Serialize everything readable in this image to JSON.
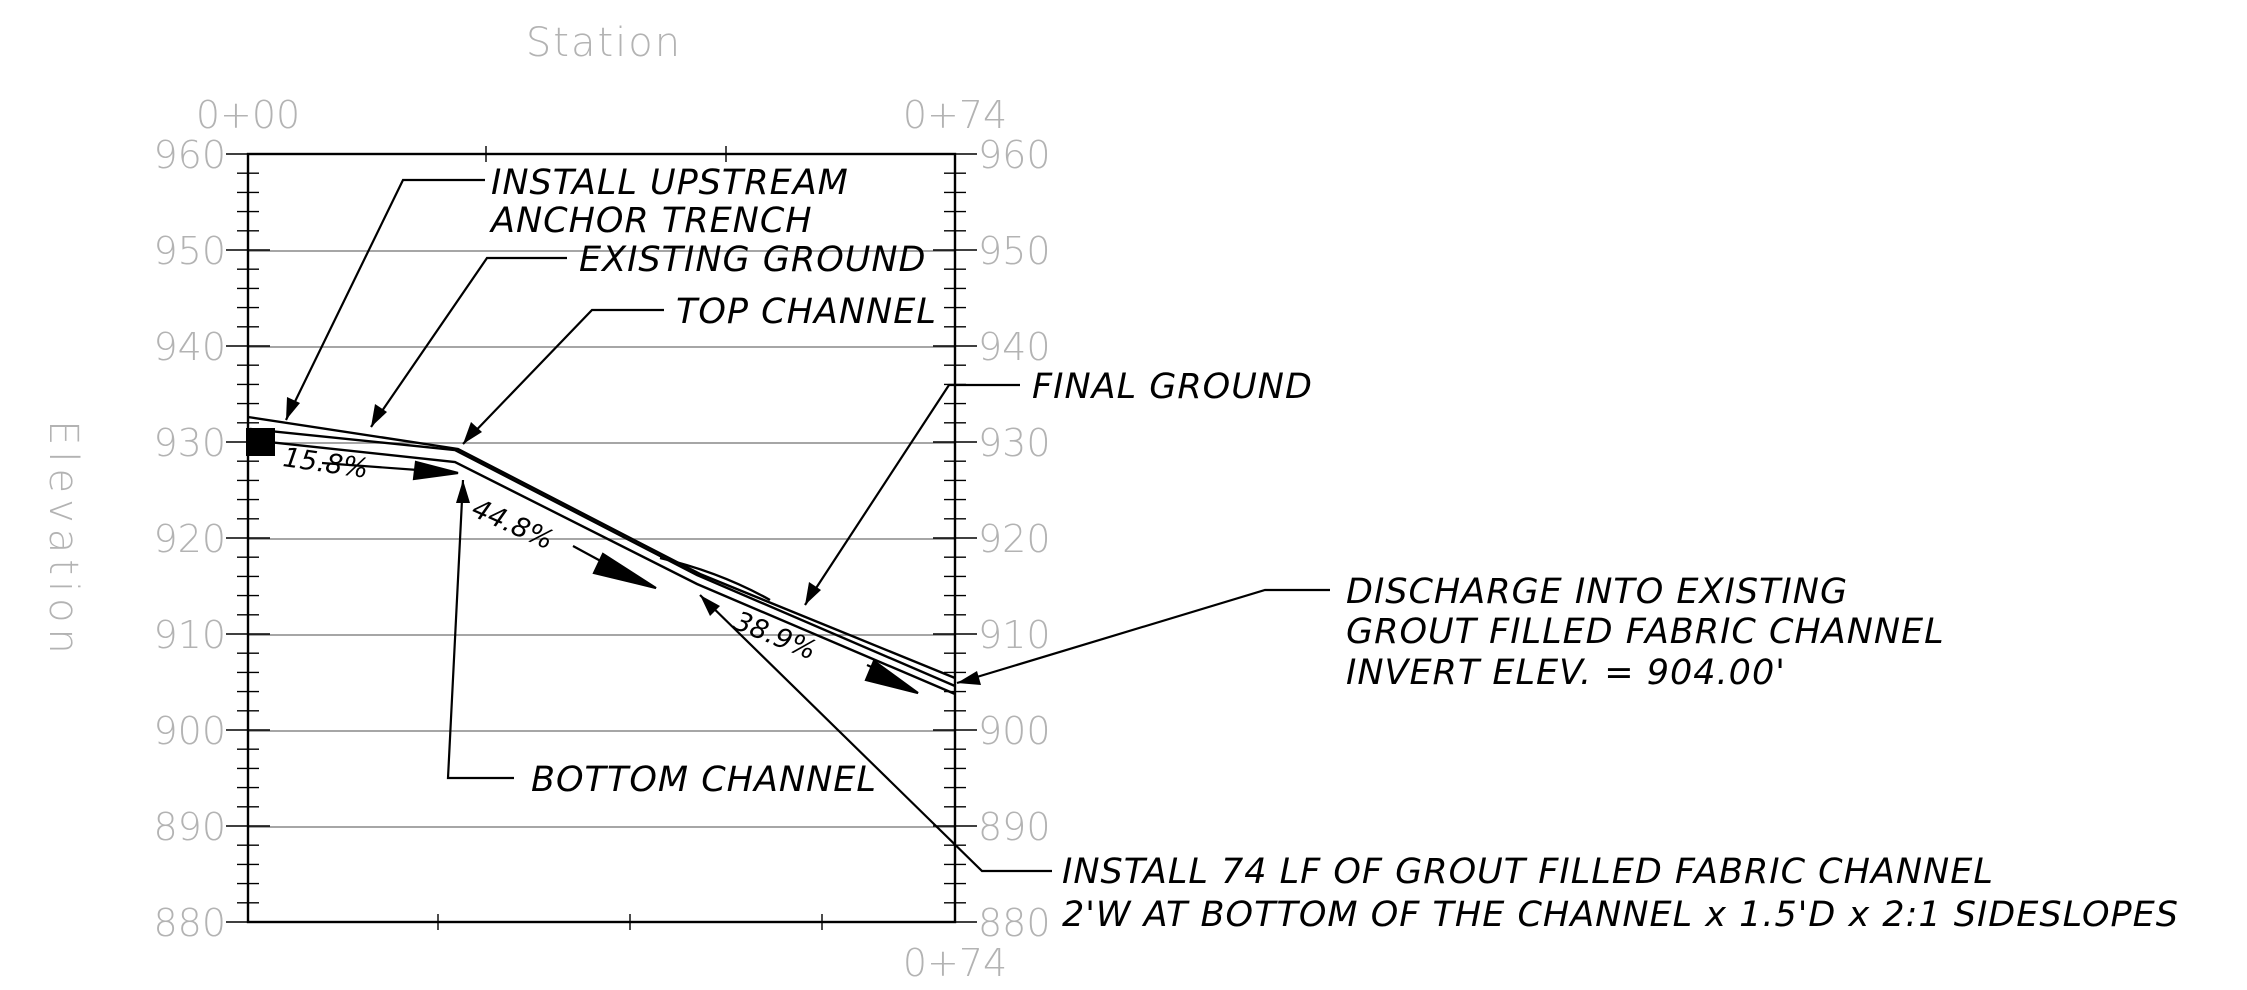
{
  "axis": {
    "station_title": "Station",
    "elevation_title": "Elevation",
    "station_start": "0+00",
    "station_end_top": "0+74",
    "station_end_bottom": "0+74",
    "elevation_labels": [
      "960",
      "950",
      "940",
      "930",
      "920",
      "910",
      "900",
      "890",
      "880"
    ]
  },
  "callouts": {
    "anchor_trench_line1": "INSTALL UPSTREAM",
    "anchor_trench_line2": "ANCHOR TRENCH",
    "existing_ground": "EXISTING GROUND",
    "top_channel": "TOP CHANNEL",
    "final_ground": "FINAL GROUND",
    "discharge_line1": "DISCHARGE INTO EXISTING",
    "discharge_line2": "GROUT FILLED FABRIC CHANNEL",
    "discharge_line3": "INVERT ELEV. = 904.00'",
    "bottom_channel": "BOTTOM CHANNEL",
    "install_line1": "INSTALL 74 LF OF GROUT FILLED FABRIC CHANNEL",
    "install_line2": "2'W AT BOTTOM OF THE CHANNEL x 1.5'D x 2:1 SIDESLOPES"
  },
  "slopes": {
    "slope1": "15.8%",
    "slope2": "44.8%",
    "slope3": "38.9%"
  },
  "colors": {
    "grid": "#888888",
    "axis_text": "#b3b3b3",
    "line": "#000000"
  }
}
